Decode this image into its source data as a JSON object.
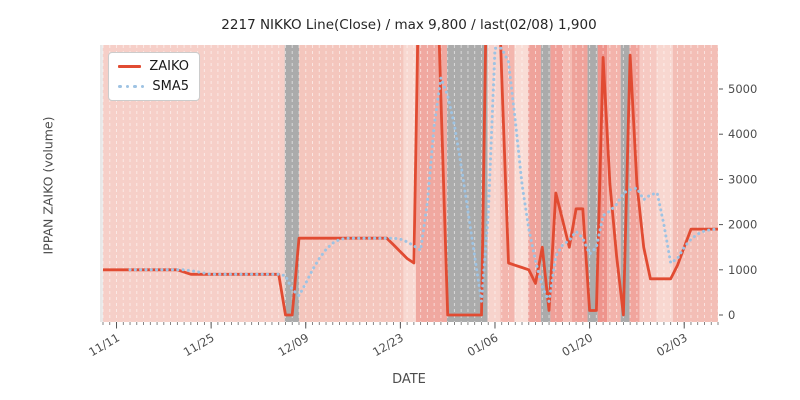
{
  "chart_data": {
    "type": "line",
    "title": "2217 NIKKO Line(Close) / max 9,800 / last(02/08) 1,900",
    "xlabel": "DATE",
    "ylabel": "IPPAN ZAIKO (volume)",
    "x_start_date": "11/09",
    "x_end_date": "02/08",
    "x_tick_labels": [
      "11/11",
      "11/25",
      "12/09",
      "12/23",
      "01/06",
      "01/20",
      "02/03"
    ],
    "x_tick_day_index": [
      2,
      16,
      30,
      44,
      58,
      72,
      86
    ],
    "y_ticks": [
      0,
      1000,
      2000,
      3000,
      4000,
      5000
    ],
    "ylim": [
      0,
      5970
    ],
    "max_value": 9800,
    "last_value": 1900,
    "grid": {
      "vertical_daily_gridlines": true,
      "gridline_color": "rgba(255,255,255,0.55)"
    },
    "legend_position": "upper-left",
    "series": [
      {
        "name": "ZAIKO",
        "color": "#e14b32",
        "style": "solid",
        "values": [
          1000,
          1000,
          1000,
          1000,
          1000,
          1000,
          1000,
          1000,
          1000,
          1000,
          1000,
          1000,
          950,
          900,
          900,
          900,
          900,
          900,
          900,
          900,
          900,
          900,
          900,
          900,
          900,
          900,
          900,
          0,
          0,
          1700,
          1700,
          1700,
          1700,
          1700,
          1700,
          1700,
          1700,
          1700,
          1700,
          1700,
          1700,
          1700,
          1700,
          1550,
          1400,
          1250,
          1150,
          9800,
          9800,
          9800,
          4800,
          0,
          0,
          0,
          0,
          0,
          0,
          9800,
          9800,
          5300,
          1150,
          1100,
          1050,
          1000,
          700,
          1500,
          100,
          2700,
          2100,
          1500,
          2350,
          2350,
          100,
          100,
          5700,
          2900,
          1300,
          0,
          5750,
          2900,
          1500,
          800,
          800,
          800,
          800,
          1100,
          1500,
          1900,
          1900,
          1900,
          1900,
          1900
        ]
      },
      {
        "name": "SMA5",
        "color": "#9ec3e3",
        "style": "dotted",
        "values": [
          null,
          null,
          null,
          null,
          1000,
          1000,
          1000,
          1000,
          1000,
          1000,
          1000,
          1000,
          1000,
          980,
          955,
          925,
          900,
          900,
          900,
          900,
          900,
          900,
          900,
          900,
          900,
          900,
          900,
          870,
          560,
          430,
          700,
          1000,
          1250,
          1450,
          1590,
          1670,
          1700,
          1700,
          1700,
          1700,
          1700,
          1700,
          1700,
          1700,
          1680,
          1620,
          1530,
          1430,
          2500,
          4200,
          5250,
          4850,
          4200,
          3300,
          2300,
          1300,
          300,
          2200,
          5900,
          5900,
          5600,
          4300,
          2900,
          1900,
          1200,
          620,
          300,
          1300,
          1550,
          1650,
          1850,
          1700,
          1350,
          1500,
          2200,
          2300,
          2450,
          2700,
          2770,
          2810,
          2550,
          2660,
          2700,
          2000,
          1150,
          1250,
          1500,
          1680,
          1790,
          1860,
          1890,
          1900
        ]
      }
    ],
    "background_bands": [
      {
        "from": -0.44,
        "to": 0,
        "color": "#e8e8e8"
      },
      {
        "from": 0,
        "to": 26.9,
        "color": "#f6cfc8"
      },
      {
        "from": 26.9,
        "to": 29,
        "color": "#ababab"
      },
      {
        "from": 29,
        "to": 44.5,
        "color": "#f4c6bd"
      },
      {
        "from": 44.5,
        "to": 46.3,
        "color": "#f8d8d1"
      },
      {
        "from": 46.3,
        "to": 50.9,
        "color": "#f0a8a0"
      },
      {
        "from": 50.9,
        "to": 56.9,
        "color": "#ababab"
      },
      {
        "from": 56.9,
        "to": 58.8,
        "color": "#f7d3cc"
      },
      {
        "from": 58.8,
        "to": 60.9,
        "color": "#f3b6ae"
      },
      {
        "from": 60.9,
        "to": 62.9,
        "color": "#f9dcd5"
      },
      {
        "from": 62.9,
        "to": 64.8,
        "color": "#efa39b"
      },
      {
        "from": 64.8,
        "to": 66.2,
        "color": "#ababab"
      },
      {
        "from": 66.2,
        "to": 68.1,
        "color": "#f0a099"
      },
      {
        "from": 68.1,
        "to": 69.4,
        "color": "#f4bcb4"
      },
      {
        "from": 69.4,
        "to": 71.7,
        "color": "#efa39b"
      },
      {
        "from": 71.7,
        "to": 73.2,
        "color": "#ababab"
      },
      {
        "from": 73.2,
        "to": 74.6,
        "color": "#ee948c"
      },
      {
        "from": 74.6,
        "to": 76.6,
        "color": "#f3b3ab"
      },
      {
        "from": 76.6,
        "to": 77.9,
        "color": "#ababab"
      },
      {
        "from": 77.9,
        "to": 79.4,
        "color": "#f1a59d"
      },
      {
        "from": 79.4,
        "to": 81.9,
        "color": "#f6c9c2"
      },
      {
        "from": 81.9,
        "to": 84.3,
        "color": "#f8d7d0"
      },
      {
        "from": 84.3,
        "to": 91,
        "color": "#f3beb6"
      }
    ]
  },
  "legend": {
    "items": [
      {
        "label": "ZAIKO",
        "color": "#e14b32",
        "style": "solid"
      },
      {
        "label": "SMA5",
        "color": "#9ec3e3",
        "style": "dotted"
      }
    ]
  }
}
